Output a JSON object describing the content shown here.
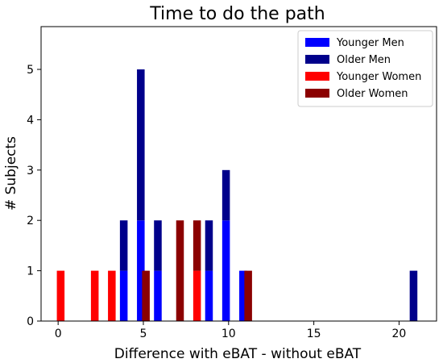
{
  "chart_data": {
    "type": "bar",
    "title": "Time to do the path",
    "xlabel": "Difference with eBAT - without eBAT",
    "ylabel": "# Subjects",
    "xlim": [
      -1,
      22.2
    ],
    "ylim": [
      0,
      5.85
    ],
    "xticks": [
      0,
      5,
      10,
      15,
      20
    ],
    "yticks": [
      0,
      1,
      2,
      3,
      4,
      5
    ],
    "grid": false,
    "legend_position": "top-right",
    "bar_width": 0.45,
    "stacked": true,
    "series": [
      {
        "name": "Younger Men",
        "color": "#0000ff",
        "points": [
          {
            "x": 3.85,
            "y": 1
          },
          {
            "x": 4.85,
            "y": 2
          },
          {
            "x": 5.85,
            "y": 1
          },
          {
            "x": 8.85,
            "y": 1
          },
          {
            "x": 9.85,
            "y": 2
          },
          {
            "x": 10.85,
            "y": 1
          }
        ]
      },
      {
        "name": "Older Men",
        "color": "#00008b",
        "points": [
          {
            "x": 3.85,
            "y": 1
          },
          {
            "x": 4.85,
            "y": 3
          },
          {
            "x": 5.85,
            "y": 1
          },
          {
            "x": 8.85,
            "y": 1
          },
          {
            "x": 9.85,
            "y": 1
          },
          {
            "x": 20.85,
            "y": 1
          }
        ]
      },
      {
        "name": "Younger Women",
        "color": "#ff0000",
        "points": [
          {
            "x": 0.15,
            "y": 1
          },
          {
            "x": 2.15,
            "y": 1
          },
          {
            "x": 3.15,
            "y": 1
          },
          {
            "x": 8.15,
            "y": 1
          }
        ]
      },
      {
        "name": "Older Women",
        "color": "#8b0000",
        "points": [
          {
            "x": 5.15,
            "y": 1
          },
          {
            "x": 7.15,
            "y": 2
          },
          {
            "x": 8.15,
            "y": 1
          },
          {
            "x": 11.15,
            "y": 1
          }
        ]
      }
    ]
  }
}
